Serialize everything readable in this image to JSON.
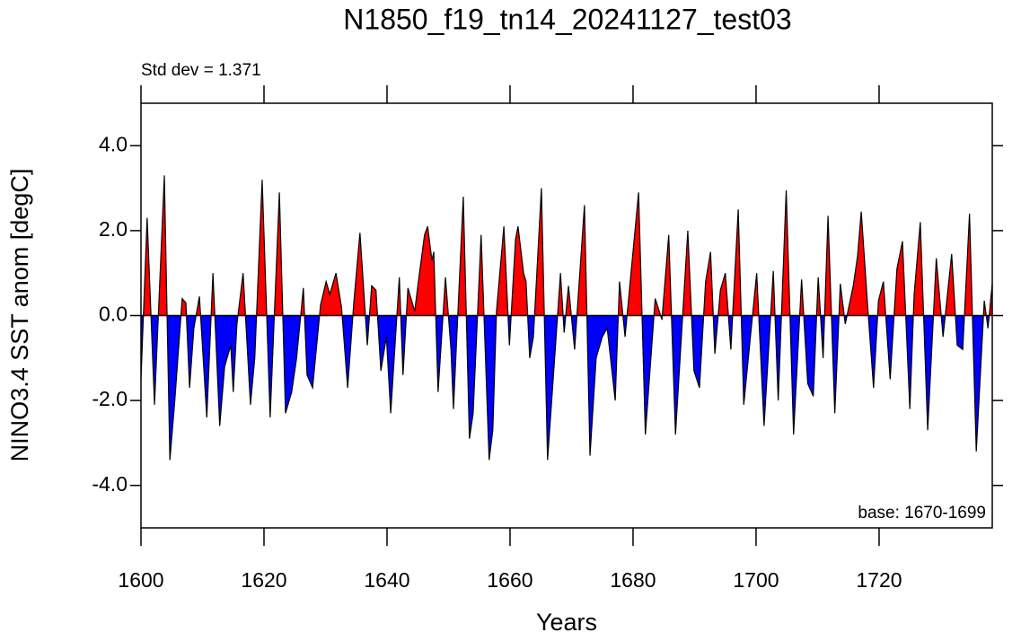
{
  "chart_data": {
    "type": "area",
    "title": "N1850_f19_tn14_20241127_test03",
    "subtitle": "Std dev = 1.371",
    "annotation": "base: 1670-1699",
    "xlabel": "Years",
    "ylabel": "NINO3.4 SST anom [degC]",
    "xlim": [
      1600,
      1738.4
    ],
    "ylim": [
      -5,
      5
    ],
    "xticks": [
      1600,
      1620,
      1640,
      1660,
      1680,
      1700,
      1720
    ],
    "yticks": [
      {
        "value": -4,
        "label": "-4.0"
      },
      {
        "value": -2,
        "label": "-2.0"
      },
      {
        "value": 0,
        "label": "0.0"
      },
      {
        "value": 2,
        "label": "2.0"
      },
      {
        "value": 4,
        "label": "4.0"
      }
    ],
    "positive_color": "#ff0000",
    "negative_color": "#0000ff",
    "line_color": "#000000",
    "x": [
      1600.0,
      1601.0,
      1602.2,
      1603.8,
      1604.7,
      1605.5,
      1606.7,
      1607.3,
      1607.9,
      1608.6,
      1609.5,
      1610.7,
      1611.7,
      1612.8,
      1613.6,
      1614.6,
      1615.0,
      1615.6,
      1616.6,
      1617.8,
      1618.5,
      1619.7,
      1621.0,
      1622.5,
      1623.5,
      1624.5,
      1625.3,
      1626.4,
      1627.0,
      1627.9,
      1629.2,
      1630.1,
      1630.7,
      1631.7,
      1632.6,
      1633.6,
      1634.6,
      1635.6,
      1636.8,
      1637.5,
      1638.2,
      1639.0,
      1639.9,
      1640.6,
      1642.0,
      1642.6,
      1643.4,
      1644.5,
      1645.1,
      1646.1,
      1646.6,
      1647.3,
      1647.6,
      1648.3,
      1649.5,
      1650.4,
      1650.8,
      1652.4,
      1653.4,
      1654.0,
      1655.3,
      1656.6,
      1657.2,
      1657.8,
      1659.0,
      1659.9,
      1660.9,
      1661.3,
      1662.2,
      1662.6,
      1663.2,
      1663.8,
      1665.1,
      1666.1,
      1667.3,
      1668.2,
      1668.8,
      1669.5,
      1670.5,
      1672.1,
      1673.0,
      1674.0,
      1675.0,
      1675.8,
      1677.1,
      1677.8,
      1678.7,
      1680.9,
      1682.0,
      1683.6,
      1684.7,
      1685.8,
      1686.9,
      1688.9,
      1689.9,
      1690.8,
      1691.8,
      1692.6,
      1693.3,
      1694.2,
      1695.0,
      1695.9,
      1697.1,
      1698.0,
      1700.1,
      1701.3,
      1702.8,
      1703.6,
      1704.9,
      1706.1,
      1707.4,
      1708.4,
      1709.3,
      1710.1,
      1710.9,
      1711.7,
      1712.8,
      1713.7,
      1714.5,
      1715.8,
      1716.5,
      1717.1,
      1718.1,
      1719.1,
      1719.9,
      1720.7,
      1721.8,
      1722.9,
      1723.8,
      1725.0,
      1725.7,
      1726.7,
      1727.9,
      1729.3,
      1730.4,
      1731.8,
      1732.7,
      1733.6,
      1734.7,
      1735.8,
      1737.1,
      1737.7,
      1738.4
    ],
    "values": [
      -1.5,
      2.3,
      -2.1,
      3.3,
      -3.4,
      -2.0,
      0.4,
      0.3,
      -1.7,
      -0.3,
      0.45,
      -2.4,
      1.0,
      -2.6,
      -1.2,
      -0.7,
      -1.8,
      -0.2,
      1.0,
      -2.1,
      -1.0,
      3.2,
      -2.4,
      2.9,
      -2.3,
      -1.8,
      -1.0,
      0.65,
      -1.4,
      -1.7,
      0.25,
      0.8,
      0.5,
      1.0,
      0.2,
      -1.7,
      0.3,
      1.95,
      -0.7,
      0.7,
      0.6,
      -1.3,
      -0.5,
      -2.3,
      0.9,
      -1.4,
      0.65,
      0.1,
      0.8,
      1.9,
      2.1,
      1.3,
      1.5,
      -1.8,
      0.9,
      -0.8,
      -2.2,
      2.8,
      -2.9,
      -2.3,
      1.9,
      -3.4,
      -2.7,
      0.1,
      2.1,
      -0.7,
      1.8,
      2.1,
      1.0,
      0.8,
      -1.0,
      -0.5,
      3.0,
      -3.4,
      -0.9,
      1.0,
      -0.4,
      0.7,
      -0.8,
      2.6,
      -3.3,
      -1.0,
      -0.5,
      -0.3,
      -2.0,
      0.8,
      -0.5,
      2.9,
      -2.8,
      0.4,
      -0.1,
      1.9,
      -2.8,
      2.0,
      -1.3,
      -1.7,
      0.8,
      1.5,
      -0.9,
      0.6,
      1.0,
      -0.8,
      2.5,
      -2.1,
      1.0,
      -2.6,
      1.05,
      -2.0,
      2.95,
      -2.8,
      0.85,
      -1.6,
      -1.9,
      0.9,
      -1.0,
      2.35,
      -2.3,
      0.75,
      -0.2,
      0.7,
      1.4,
      2.45,
      0.3,
      -1.7,
      0.35,
      0.8,
      -1.5,
      1.1,
      1.75,
      -2.2,
      0.5,
      2.2,
      -2.7,
      1.35,
      -0.5,
      1.45,
      -0.7,
      -0.8,
      2.4,
      -3.2,
      0.35,
      -0.3,
      0.75
    ]
  }
}
